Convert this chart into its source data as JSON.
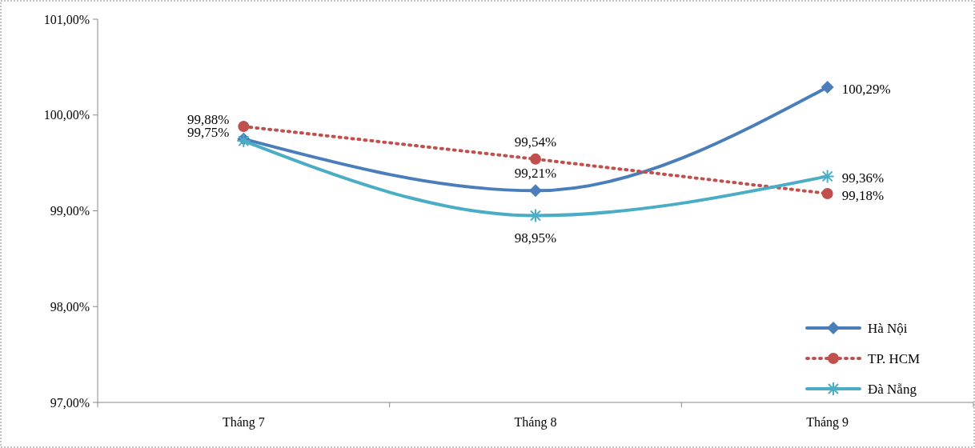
{
  "chart_data": {
    "type": "line",
    "categories": [
      "Tháng 7",
      "Tháng 8",
      "Tháng 9"
    ],
    "ylim": [
      97,
      101
    ],
    "yticks": [
      {
        "value": 97,
        "label": "97,00%"
      },
      {
        "value": 98,
        "label": "98,00%"
      },
      {
        "value": 99,
        "label": "99,00%"
      },
      {
        "value": 100,
        "label": "100,00%"
      },
      {
        "value": 101,
        "label": "101,00%"
      }
    ],
    "series": [
      {
        "name": "Hà Nội",
        "color": "#4a7ebb",
        "values": [
          99.75,
          99.21,
          100.29
        ],
        "marker": "diamond",
        "line_style": "solid",
        "value_labels": [
          "99,75%",
          "99,21%",
          "100,29%"
        ]
      },
      {
        "name": "TP. HCM",
        "color": "#c0504d",
        "values": [
          99.88,
          99.54,
          99.18
        ],
        "marker": "circle",
        "line_style": "dotted",
        "value_labels": [
          "99,88%",
          "99,54%",
          "99,18%"
        ]
      },
      {
        "name": "Đà Nẵng",
        "color": "#4bacc6",
        "values": [
          99.73,
          98.95,
          99.36
        ],
        "marker": "cross",
        "line_style": "solid",
        "value_labels": [
          null,
          "98,95%",
          "99,36%"
        ]
      }
    ],
    "grid": false,
    "legend": "bottom right"
  }
}
